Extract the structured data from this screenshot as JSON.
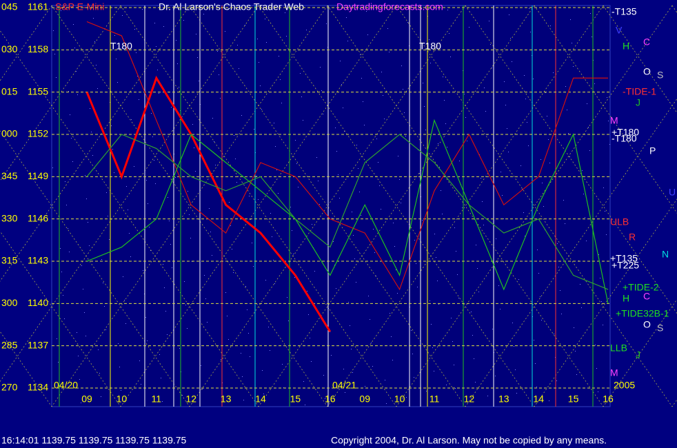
{
  "chart_data": {
    "type": "line",
    "title": "Dr. Al Larson's Chaos Trader Web",
    "subtitle": "S&P E-Mini",
    "site": "Daytradingforecasts.com",
    "date_labels": [
      "04/20",
      "04/21",
      "2005"
    ],
    "categories": [
      "09",
      "10",
      "11",
      "12",
      "13",
      "14",
      "15",
      "16",
      "09",
      "10",
      "11",
      "12",
      "13",
      "14",
      "15",
      "16"
    ],
    "series": [
      {
        "name": "S&P E-Mini",
        "color": "#ff0000",
        "values": [
          1155,
          1149,
          1156,
          1152,
          1147,
          1145,
          1142,
          1138,
          null,
          null,
          null,
          null,
          null,
          null,
          null,
          null
        ]
      },
      {
        "name": "-TIDE-1",
        "color": "#d01010",
        "values": [
          1160,
          1159,
          1153,
          1147,
          1145,
          1150,
          1149,
          1146,
          1145,
          1141,
          1148,
          1152,
          1147,
          1149,
          1156,
          1156
        ]
      },
      {
        "name": "+TIDE-2",
        "color": "#20c020",
        "values": [
          1143,
          1144,
          1146,
          1152,
          1150,
          1148,
          1146,
          1142,
          1147,
          1142,
          1153,
          1147,
          1141,
          1147,
          1152,
          1140
        ]
      },
      {
        "name": "+TIDE32B-1",
        "color": "#30a030",
        "values": [
          1149,
          1152,
          1151,
          1149,
          1148,
          1149,
          1146,
          1144,
          1150,
          1152,
          1150,
          1147,
          1145,
          1146,
          1142,
          1141
        ]
      }
    ],
    "ylim": [
      1134,
      1161
    ],
    "yticks": [
      1134,
      1137,
      1140,
      1143,
      1146,
      1149,
      1152,
      1155,
      1158,
      1161
    ],
    "angle_labels": [
      "270",
      "285",
      "300",
      "315",
      "330",
      "345",
      "000",
      "015",
      "030",
      "045"
    ],
    "grid": true,
    "annotations": [
      "-T135",
      "V",
      "H",
      "C",
      "O",
      "S",
      "J",
      "M",
      "+T180",
      "-T180",
      "P",
      "U",
      "ULB",
      "R",
      "N",
      "+T135",
      "+T225",
      "H",
      "C",
      "O",
      "S",
      "LLB",
      "J",
      "M",
      "T180",
      "T180"
    ],
    "status": "16:14:01  1139.75 1139.75 1139.75 1139.75",
    "copyright": "Copyright 2004, Dr. Al Larson. May not be copied by any means."
  }
}
